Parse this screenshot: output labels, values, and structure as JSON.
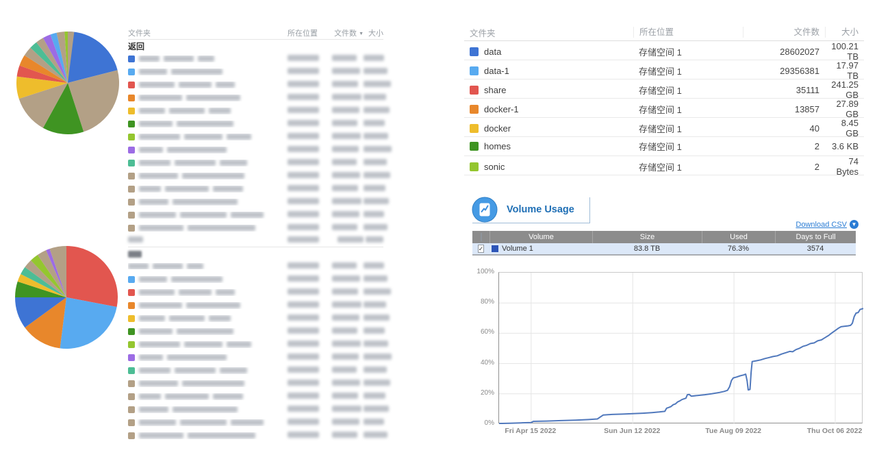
{
  "palette": {
    "blue": "#3e74d4",
    "lightblue": "#58aaf0",
    "red": "#e2564f",
    "orange": "#e8872b",
    "yellow": "#eebd2c",
    "green": "#3f9422",
    "lime": "#94c62f",
    "teal": "#4dbd95",
    "purple": "#9c6ce4",
    "tan": "#b3a086",
    "line": "#5078bc",
    "volume_square": "#2d55b8",
    "title_blue": "#1f6fb5",
    "link_blue": "#2a7cd4"
  },
  "columns": {
    "folder": "文件夹",
    "location": "所在位置",
    "count": "文件数",
    "size": "大小",
    "sort_caret": "▼"
  },
  "left_top_table": {
    "back_label": "返回",
    "rows": [
      {
        "color": "blue"
      },
      {
        "color": "lightblue"
      },
      {
        "color": "red"
      },
      {
        "color": "orange"
      },
      {
        "color": "yellow"
      },
      {
        "color": "green"
      },
      {
        "color": "lime"
      },
      {
        "color": "purple"
      },
      {
        "color": "teal"
      },
      {
        "color": "tan"
      },
      {
        "color": "tan"
      },
      {
        "color": "tan"
      },
      {
        "color": "tan"
      },
      {
        "color": "tan"
      }
    ]
  },
  "left_bottom_table": {
    "rows": [
      {
        "color": null
      },
      {
        "color": "lightblue"
      },
      {
        "color": "red"
      },
      {
        "color": "orange"
      },
      {
        "color": "yellow"
      },
      {
        "color": "green"
      },
      {
        "color": "lime"
      },
      {
        "color": "purple"
      },
      {
        "color": "teal"
      },
      {
        "color": "tan"
      },
      {
        "color": "tan"
      },
      {
        "color": "tan"
      },
      {
        "color": "tan"
      },
      {
        "color": "tan"
      }
    ]
  },
  "right_folder_table": {
    "rows": [
      {
        "name": "data",
        "color": "blue",
        "location": "存储空间 1",
        "count": "28602027",
        "size": "100.21 TB"
      },
      {
        "name": "data-1",
        "color": "lightblue",
        "location": "存储空间 1",
        "count": "29356381",
        "size": "17.97 TB"
      },
      {
        "name": "share",
        "color": "red",
        "location": "存储空间 1",
        "count": "35111",
        "size": "241.25 GB"
      },
      {
        "name": "docker-1",
        "color": "orange",
        "location": "存储空间 1",
        "count": "13857",
        "size": "27.89 GB"
      },
      {
        "name": "docker",
        "color": "yellow",
        "location": "存储空间 1",
        "count": "40",
        "size": "8.45 GB"
      },
      {
        "name": "homes",
        "color": "green",
        "location": "存储空间 1",
        "count": "2",
        "size": "3.6 KB"
      },
      {
        "name": "sonic",
        "color": "lime",
        "location": "存储空间 1",
        "count": "2",
        "size": "74 Bytes"
      }
    ]
  },
  "volume_usage": {
    "title": "Volume Usage",
    "download_csv_label": "Download CSV",
    "download_icon_glyph": "▼",
    "checkbox_check": "✓",
    "table": {
      "headers": [
        "Volume",
        "Size",
        "Used",
        "Days to Full"
      ],
      "rows": [
        {
          "checked": true,
          "name": "Volume 1",
          "size": "83.8 TB",
          "used": "76.3%",
          "days_to_full": "3574"
        }
      ]
    }
  },
  "chart_data": [
    {
      "id": "top-left-pie",
      "type": "pie",
      "slices": [
        {
          "color": "blue",
          "value": 21
        },
        {
          "color": "tan",
          "value": 24
        },
        {
          "color": "green",
          "value": 13
        },
        {
          "color": "tan",
          "value": 12
        },
        {
          "color": "yellow",
          "value": 7
        },
        {
          "color": "red",
          "value": 3.5
        },
        {
          "color": "orange",
          "value": 3.5
        },
        {
          "color": "tan",
          "value": 3
        },
        {
          "color": "teal",
          "value": 2.5
        },
        {
          "color": "tan",
          "value": 2.5
        },
        {
          "color": "purple",
          "value": 2.5
        },
        {
          "color": "lightblue",
          "value": 2
        },
        {
          "color": "tan",
          "value": 2.5
        },
        {
          "color": "lime",
          "value": 1
        },
        {
          "color": "tan",
          "value": 2
        }
      ]
    },
    {
      "id": "bottom-left-pie",
      "type": "pie",
      "slices": [
        {
          "color": "red",
          "value": 28
        },
        {
          "color": "lightblue",
          "value": 24
        },
        {
          "color": "orange",
          "value": 13
        },
        {
          "color": "blue",
          "value": 10
        },
        {
          "color": "green",
          "value": 5
        },
        {
          "color": "yellow",
          "value": 2.5
        },
        {
          "color": "teal",
          "value": 2.5
        },
        {
          "color": "tan",
          "value": 2.8
        },
        {
          "color": "lime",
          "value": 2.7
        },
        {
          "color": "tan",
          "value": 3
        },
        {
          "color": "purple",
          "value": 1.2
        },
        {
          "color": "tan",
          "value": 5.3
        }
      ]
    },
    {
      "id": "volume-usage-line",
      "type": "line",
      "ylim": [
        0,
        100
      ],
      "y_ticks": [
        "0%",
        "20%",
        "40%",
        "60%",
        "80%",
        "100%"
      ],
      "x_ticks": [
        {
          "label": "Fri Apr 15 2022",
          "pos": 0.088
        },
        {
          "label": "Sun Jun 12 2022",
          "pos": 0.367
        },
        {
          "label": "Tue Aug 09 2022",
          "pos": 0.645
        },
        {
          "label": "Thu Oct 06 2022",
          "pos": 0.923
        }
      ],
      "grid": true,
      "legend": "none",
      "series": [
        {
          "name": "Volume 1",
          "color": "#5078bc",
          "points": [
            [
              0,
              0.4
            ],
            [
              0.03,
              0.6
            ],
            [
              0.06,
              0.8
            ],
            [
              0.088,
              1
            ],
            [
              0.094,
              1.8
            ],
            [
              0.13,
              2
            ],
            [
              0.17,
              2.3
            ],
            [
              0.21,
              2.6
            ],
            [
              0.245,
              3
            ],
            [
              0.27,
              3.4
            ],
            [
              0.286,
              6
            ],
            [
              0.31,
              6.4
            ],
            [
              0.34,
              6.6
            ],
            [
              0.367,
              6.9
            ],
            [
              0.395,
              7.2
            ],
            [
              0.42,
              7.6
            ],
            [
              0.44,
              8
            ],
            [
              0.455,
              8.4
            ],
            [
              0.46,
              10.5
            ],
            [
              0.466,
              11
            ],
            [
              0.472,
              11.6
            ],
            [
              0.478,
              12.8
            ],
            [
              0.484,
              13.3
            ],
            [
              0.49,
              14.6
            ],
            [
              0.496,
              15.3
            ],
            [
              0.502,
              16.2
            ],
            [
              0.508,
              16.7
            ],
            [
              0.513,
              17.1
            ],
            [
              0.517,
              19.4
            ],
            [
              0.522,
              19.6
            ],
            [
              0.528,
              18.4
            ],
            [
              0.545,
              18.9
            ],
            [
              0.565,
              19.4
            ],
            [
              0.585,
              20.1
            ],
            [
              0.605,
              20.9
            ],
            [
              0.618,
              21.6
            ],
            [
              0.627,
              22.3
            ],
            [
              0.633,
              24.8
            ],
            [
              0.638,
              28.8
            ],
            [
              0.643,
              30.5
            ],
            [
              0.652,
              31.1
            ],
            [
              0.662,
              31.9
            ],
            [
              0.672,
              32.5
            ],
            [
              0.677,
              33
            ],
            [
              0.681,
              28.5
            ],
            [
              0.684,
              22.6
            ],
            [
              0.689,
              22.9
            ],
            [
              0.692,
              34
            ],
            [
              0.695,
              41.3
            ],
            [
              0.706,
              41.8
            ],
            [
              0.718,
              42.4
            ],
            [
              0.73,
              43.3
            ],
            [
              0.742,
              44
            ],
            [
              0.752,
              44.6
            ],
            [
              0.764,
              45.1
            ],
            [
              0.776,
              46.3
            ],
            [
              0.788,
              47.2
            ],
            [
              0.798,
              48
            ],
            [
              0.806,
              47.8
            ],
            [
              0.815,
              49.2
            ],
            [
              0.825,
              50.1
            ],
            [
              0.835,
              51.4
            ],
            [
              0.845,
              52.1
            ],
            [
              0.855,
              53.2
            ],
            [
              0.865,
              53.6
            ],
            [
              0.875,
              55
            ],
            [
              0.885,
              55.6
            ],
            [
              0.895,
              57.1
            ],
            [
              0.905,
              58.6
            ],
            [
              0.913,
              60.1
            ],
            [
              0.923,
              61.8
            ],
            [
              0.931,
              63.2
            ],
            [
              0.939,
              64.3
            ],
            [
              0.948,
              64.6
            ],
            [
              0.958,
              64.9
            ],
            [
              0.965,
              65.2
            ],
            [
              0.97,
              66.6
            ],
            [
              0.975,
              71
            ],
            [
              0.98,
              73.3
            ],
            [
              0.986,
              73.7
            ],
            [
              0.991,
              75.7
            ],
            [
              1,
              76.3
            ]
          ]
        }
      ]
    }
  ]
}
